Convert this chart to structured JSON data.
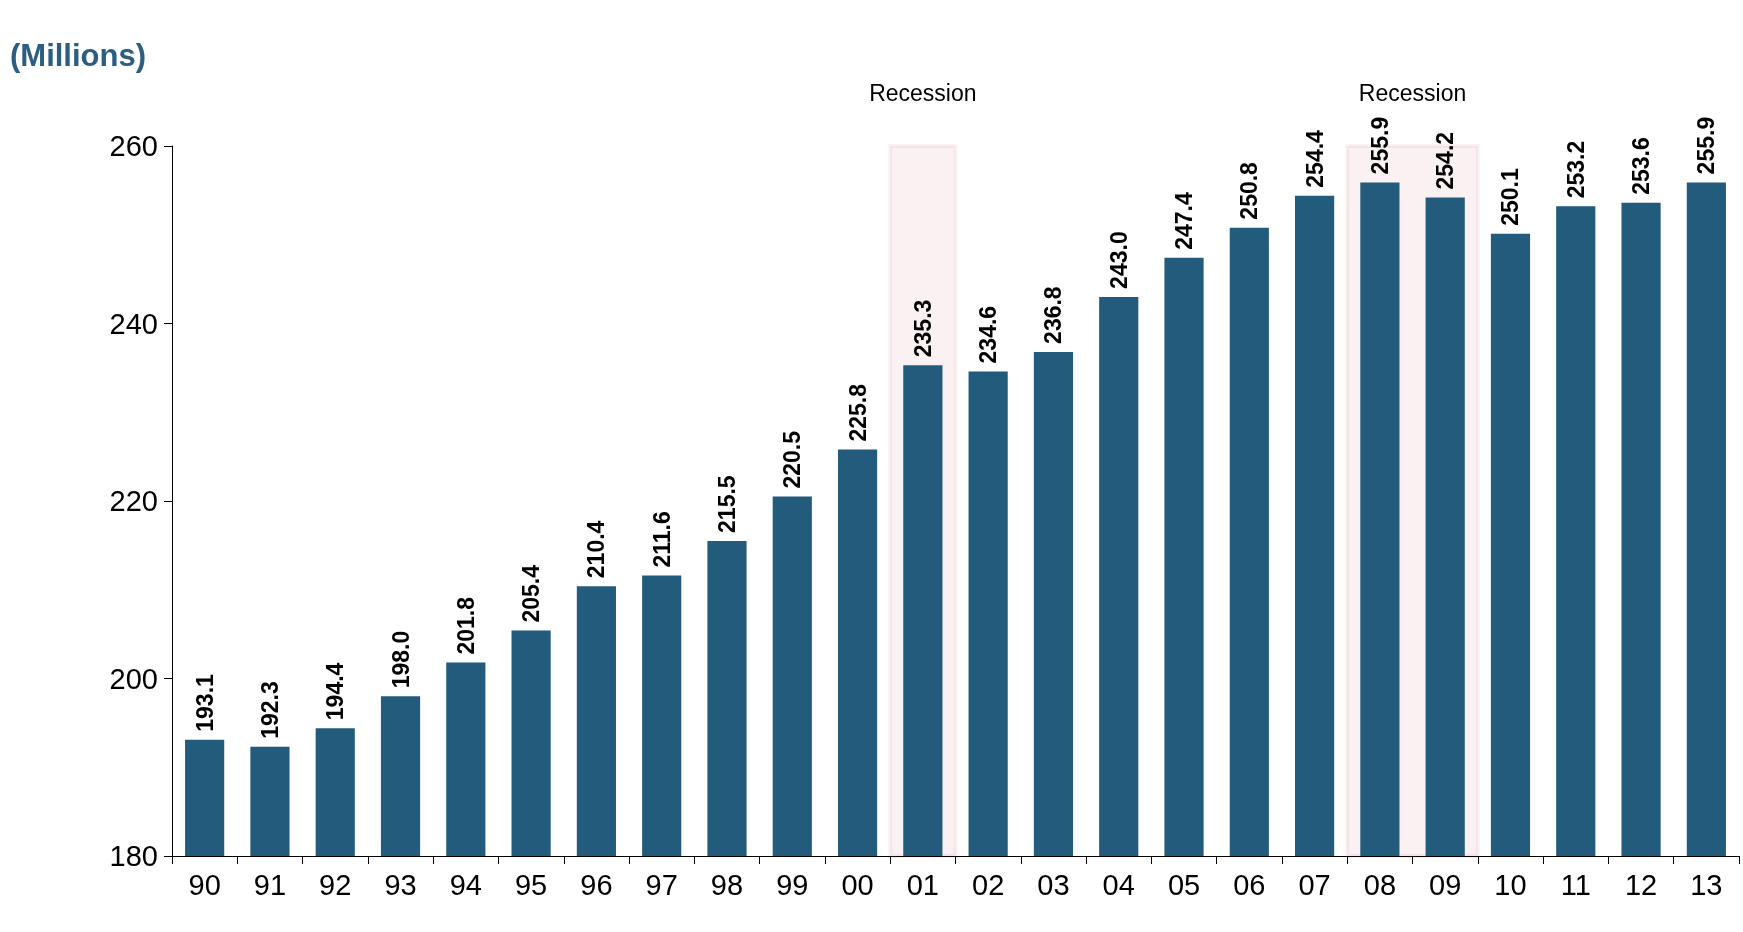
{
  "chart_data": {
    "type": "bar",
    "ylabel": "(Millions)",
    "categories": [
      "90",
      "91",
      "92",
      "93",
      "94",
      "95",
      "96",
      "97",
      "98",
      "99",
      "00",
      "01",
      "02",
      "03",
      "04",
      "05",
      "06",
      "07",
      "08",
      "09",
      "10",
      "11",
      "12",
      "13"
    ],
    "values": [
      193.1,
      192.3,
      194.4,
      198.0,
      201.8,
      205.4,
      210.4,
      211.6,
      215.5,
      220.5,
      225.8,
      235.3,
      234.6,
      236.8,
      243.0,
      247.4,
      250.8,
      254.4,
      255.9,
      254.2,
      250.1,
      253.2,
      253.6,
      255.9
    ],
    "value_labels": [
      "193.1",
      "192.3",
      "194.4",
      "198.0",
      "201.8",
      "205.4",
      "210.4",
      "211.6",
      "215.5",
      "220.5",
      "225.8",
      "235.3",
      "234.6",
      "236.8",
      "243.0",
      "247.4",
      "250.8",
      "254.4",
      "255.9",
      "254.2",
      "250.1",
      "253.2",
      "253.6",
      "255.9"
    ],
    "color": "#225b7b",
    "ylim": [
      180,
      260
    ],
    "yticks": [
      180,
      200,
      220,
      240,
      260
    ],
    "grid": false,
    "bands": [
      {
        "axis": "x",
        "from": "01",
        "to": "01",
        "label": "Recession",
        "color": "#a6192e"
      },
      {
        "axis": "x",
        "from": "08",
        "to": "09",
        "label": "Recession",
        "color": "#a6192e"
      }
    ]
  }
}
